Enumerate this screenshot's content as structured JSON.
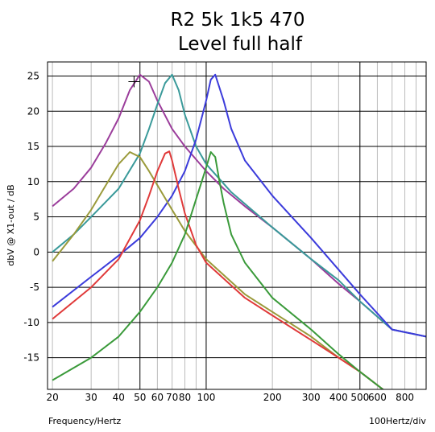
{
  "chart_data": {
    "type": "line",
    "title_line1": "R2 5k 1k5  470",
    "title_line2": "Level full  half",
    "xlabel": "Frequency/Hertz",
    "ylabel": "dbV @ X1-out / dB",
    "x_scale": "log",
    "x_division_label": "100Hertz/div",
    "xlim": [
      19,
      1000
    ],
    "ylim": [
      -19.5,
      27
    ],
    "x_tick_labels": [
      {
        "value": 20,
        "label": "20"
      },
      {
        "value": 30,
        "label": "30"
      },
      {
        "value": 40,
        "label": "40"
      },
      {
        "value": 50,
        "label": "50"
      },
      {
        "value": 60,
        "label": "60"
      },
      {
        "value": 70,
        "label": "70"
      },
      {
        "value": 80,
        "label": "80"
      },
      {
        "value": 100,
        "label": "100"
      },
      {
        "value": 200,
        "label": "200"
      },
      {
        "value": 300,
        "label": "300"
      },
      {
        "value": 400,
        "label": "400"
      },
      {
        "value": 500,
        "label": "500"
      },
      {
        "value": 600,
        "label": "600"
      },
      {
        "value": 800,
        "label": "800"
      }
    ],
    "y_ticks": [
      25,
      20,
      15,
      10,
      5,
      0,
      -5,
      -10,
      -15
    ],
    "y_tick_labels": [
      "25",
      "20",
      "15",
      "10",
      "5",
      "0",
      "-5",
      "-10",
      "-15"
    ],
    "grid": true,
    "cursor_marker": {
      "x": 47,
      "y": 24.2
    },
    "series": [
      {
        "color": "#9b3d9b",
        "x": [
          20,
          25,
          30,
          35,
          40,
          45,
          50,
          55,
          60,
          70,
          80,
          100,
          120,
          150,
          200,
          300,
          400,
          500,
          700,
          1000
        ],
        "y": [
          6.5,
          9,
          12,
          15.5,
          19,
          23,
          25.2,
          24.2,
          21.5,
          17.5,
          15,
          11.5,
          9,
          6.5,
          3.5,
          -1,
          -4.5,
          -7,
          -11,
          -12
        ]
      },
      {
        "color": "#3a9a9a",
        "x": [
          20,
          25,
          30,
          40,
          50,
          55,
          60,
          65,
          70,
          75,
          80,
          90,
          100,
          130,
          200,
          300,
          400,
          500,
          700,
          1000
        ],
        "y": [
          0,
          2.5,
          5,
          9,
          14,
          17.5,
          21,
          24,
          25.2,
          23,
          19.5,
          15,
          12.5,
          8.5,
          3.5,
          -1,
          -4,
          -7,
          -11,
          -12
        ]
      },
      {
        "color": "#3b3bdb",
        "x": [
          20,
          30,
          40,
          50,
          60,
          70,
          80,
          90,
          100,
          105,
          110,
          120,
          130,
          150,
          200,
          300,
          400,
          500,
          700,
          1000
        ],
        "y": [
          -7.8,
          -3.5,
          -0.5,
          2,
          5,
          8,
          11.5,
          16,
          21.5,
          24.5,
          25.2,
          21.5,
          17.5,
          13,
          8,
          2,
          -2.5,
          -6,
          -11,
          -12
        ]
      },
      {
        "color": "#9a9a3a",
        "x": [
          20,
          25,
          30,
          35,
          40,
          45,
          50,
          55,
          60,
          70,
          80,
          100,
          150,
          200,
          300,
          400,
          500,
          700
        ],
        "y": [
          -1.3,
          2.5,
          6,
          9.5,
          12.5,
          14.2,
          13.5,
          11.5,
          9.5,
          6,
          3,
          -1,
          -6,
          -8.5,
          -12,
          -15,
          -17,
          -20.5
        ]
      },
      {
        "color": "#e03a3a",
        "x": [
          20,
          30,
          40,
          50,
          55,
          60,
          65,
          68,
          70,
          75,
          80,
          90,
          100,
          150,
          200,
          300,
          400,
          500,
          700
        ],
        "y": [
          -9.5,
          -5,
          -1,
          4.5,
          8,
          11.5,
          14,
          14.3,
          13,
          9,
          5.5,
          1,
          -1.5,
          -6.5,
          -9,
          -12.5,
          -15,
          -17,
          -20.5
        ]
      },
      {
        "color": "#3a9a3a",
        "x": [
          20,
          30,
          40,
          50,
          60,
          70,
          80,
          90,
          100,
          105,
          110,
          115,
          120,
          130,
          150,
          200,
          300,
          400,
          500,
          700
        ],
        "y": [
          -18.2,
          -15,
          -12,
          -8.5,
          -5,
          -1.5,
          2.5,
          7.5,
          12,
          14.2,
          13.5,
          10,
          7,
          2.5,
          -1.5,
          -6.5,
          -11,
          -14.5,
          -17,
          -20.5
        ]
      }
    ]
  }
}
